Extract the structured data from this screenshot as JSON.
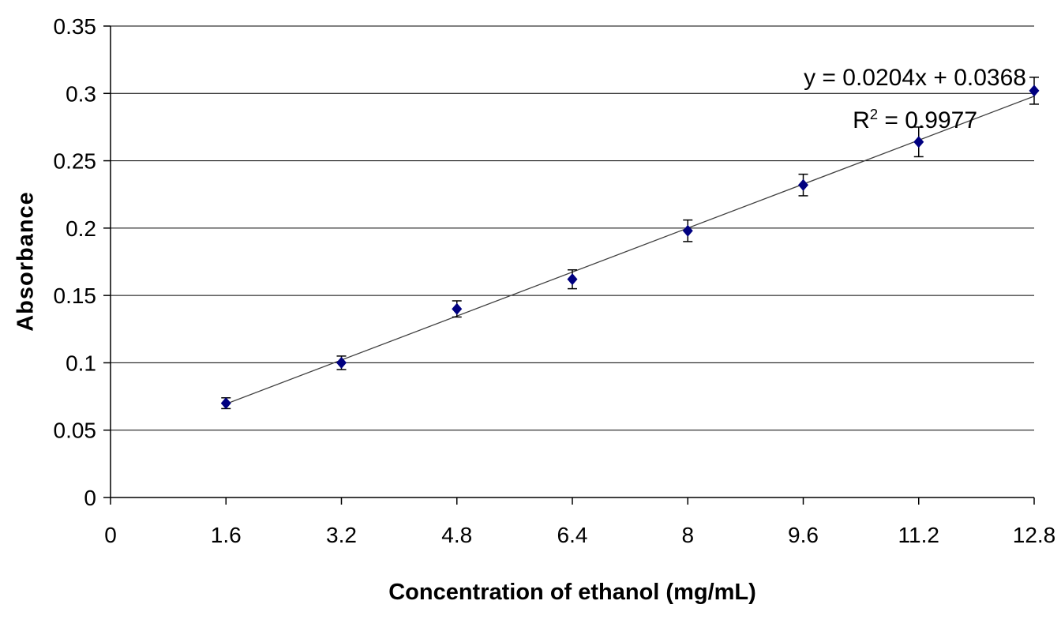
{
  "chart_data": {
    "type": "scatter",
    "title": "",
    "xlabel": "Concentration of ethanol (mg/mL)",
    "ylabel": "Absorbance",
    "xlim": [
      0,
      12.8
    ],
    "ylim": [
      0,
      0.35
    ],
    "x_ticks": [
      0,
      1.6,
      3.2,
      4.8,
      6.4,
      8,
      9.6,
      11.2,
      12.8
    ],
    "x_tick_labels": [
      "0",
      "1.6",
      "3.2",
      "4.8",
      "6.4",
      "8",
      "9.6",
      "11.2",
      "12.8"
    ],
    "y_ticks": [
      0,
      0.05,
      0.1,
      0.15,
      0.2,
      0.25,
      0.3,
      0.35
    ],
    "y_tick_labels": [
      "0",
      "0.05",
      "0.1",
      "0.15",
      "0.2",
      "0.25",
      "0.3",
      "0.35"
    ],
    "grid": "horizontal",
    "legend": "none",
    "series": [
      {
        "name": "absorbance-vs-concentration",
        "marker": "diamond",
        "marker_color": "#000080",
        "x": [
          1.6,
          3.2,
          4.8,
          6.4,
          8,
          9.6,
          11.2,
          12.8
        ],
        "y": [
          0.07,
          0.1,
          0.14,
          0.162,
          0.198,
          0.232,
          0.264,
          0.302
        ],
        "y_error": [
          0.004,
          0.005,
          0.006,
          0.007,
          0.008,
          0.008,
          0.011,
          0.01
        ]
      }
    ],
    "trendline": {
      "slope": 0.0204,
      "intercept": 0.0368,
      "x_start": 1.6,
      "x_end": 12.8,
      "color": "#404040"
    },
    "annotation": {
      "equation": "y = 0.0204x + 0.0368",
      "r_squared_base": "R",
      "r_squared_sup": "2",
      "r_squared_rest": " = 0.9977"
    }
  },
  "colors": {
    "background": "#ffffff",
    "axis": "#000000",
    "grid": "#000000",
    "marker": "#000080",
    "error_bar": "#000000",
    "text": "#000000"
  }
}
